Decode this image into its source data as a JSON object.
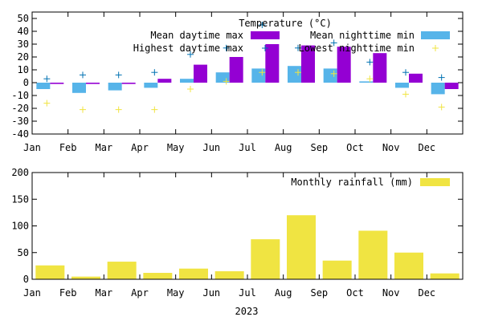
{
  "chart_data": [
    {
      "type": "bar",
      "title": "Temperature (°C)",
      "xlabel": "",
      "ylabel": "",
      "ylim": [
        -40,
        55
      ],
      "yticks": [
        -40,
        -30,
        -20,
        -10,
        0,
        10,
        20,
        30,
        40,
        50
      ],
      "categories": [
        "Jan",
        "Feb",
        "Mar",
        "Apr",
        "May",
        "Jun",
        "Jul",
        "Aug",
        "Sep",
        "Oct",
        "Nov",
        "Dec"
      ],
      "grid": false,
      "legend_placement": "top",
      "series": [
        {
          "name": "Mean daytime max",
          "kind": "bar",
          "color": "#9400d3",
          "values": [
            -1,
            -1,
            -1,
            3,
            14,
            20,
            30,
            29,
            28,
            23,
            7,
            -5
          ]
        },
        {
          "name": "Mean nighttime min",
          "kind": "bar",
          "color": "#56b4e9",
          "values": [
            -5,
            -8,
            -6,
            -4,
            3,
            8,
            11,
            13,
            11,
            1,
            -4,
            -9
          ]
        },
        {
          "name": "Highest daytime max",
          "kind": "point",
          "marker": "+",
          "color": "#0072b2",
          "values": [
            3,
            6,
            6,
            8,
            22,
            27,
            45,
            27,
            31,
            16,
            8,
            4
          ]
        },
        {
          "name": "Lowest nighttime min",
          "kind": "point",
          "marker": "+",
          "color": "#f0e442",
          "values": [
            -16,
            -21,
            -21,
            -21,
            -5,
            1,
            8,
            8,
            7,
            3,
            -9,
            -19
          ]
        }
      ]
    },
    {
      "type": "bar",
      "title": "",
      "xlabel": "2023",
      "ylabel": "",
      "ylim": [
        0,
        200
      ],
      "yticks": [
        0,
        50,
        100,
        150,
        200
      ],
      "categories": [
        "Jan",
        "Feb",
        "Mar",
        "Apr",
        "May",
        "Jun",
        "Jul",
        "Aug",
        "Sep",
        "Oct",
        "Nov",
        "Dec"
      ],
      "grid": false,
      "legend_placement": "top-right",
      "series": [
        {
          "name": "Monthly rainfall (mm)",
          "kind": "bar",
          "color": "#f0e442",
          "values": [
            26,
            5,
            33,
            12,
            20,
            15,
            75,
            120,
            35,
            91,
            50,
            11
          ]
        }
      ]
    }
  ]
}
